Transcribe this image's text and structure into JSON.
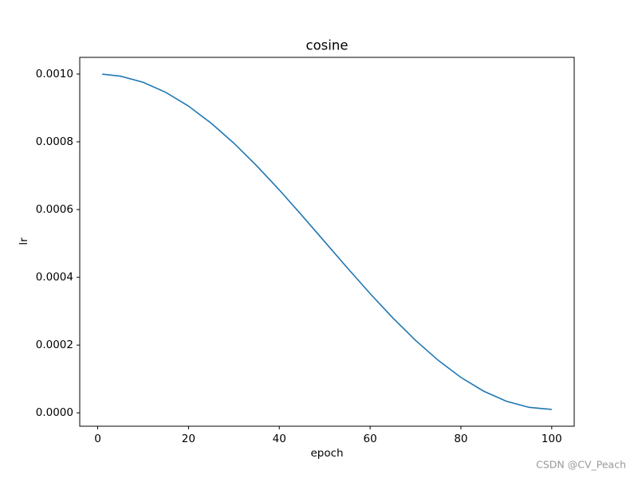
{
  "chart_data": {
    "type": "line",
    "title": "cosine",
    "x_label": "epoch",
    "y_label": "lr",
    "x": [
      1,
      5,
      10,
      15,
      20,
      25,
      30,
      35,
      40,
      45,
      50,
      55,
      60,
      65,
      70,
      75,
      80,
      85,
      90,
      95,
      100
    ],
    "series": [
      {
        "name": "lr",
        "color": "#1f77b4",
        "values": [
          0.0009998,
          0.0009939,
          0.0009758,
          0.000946,
          0.0009055,
          0.000855,
          0.000796,
          0.0007297,
          0.000658,
          0.0005824,
          0.000505,
          0.0004276,
          0.000352,
          0.0002803,
          0.000214,
          0.000155,
          0.0001045,
          6.4e-05,
          3.42e-05,
          1.61e-05,
          1e-05
        ]
      }
    ],
    "xlim": [
      -3.95,
      104.95
    ],
    "ylim": [
      -3.95e-05,
      0.0010493
    ],
    "xticks": [
      0,
      20,
      40,
      60,
      80,
      100
    ],
    "yticks": [
      {
        "value": 0,
        "label": "0.0000"
      },
      {
        "value": 0.0002,
        "label": "0.0002"
      },
      {
        "value": 0.0004,
        "label": "0.0004"
      },
      {
        "value": 0.0006,
        "label": "0.0006"
      },
      {
        "value": 0.0008,
        "label": "0.0008"
      },
      {
        "value": 0.001,
        "label": "0.0010"
      }
    ],
    "grid": false
  },
  "watermark": "CSDN @CV_Peach"
}
